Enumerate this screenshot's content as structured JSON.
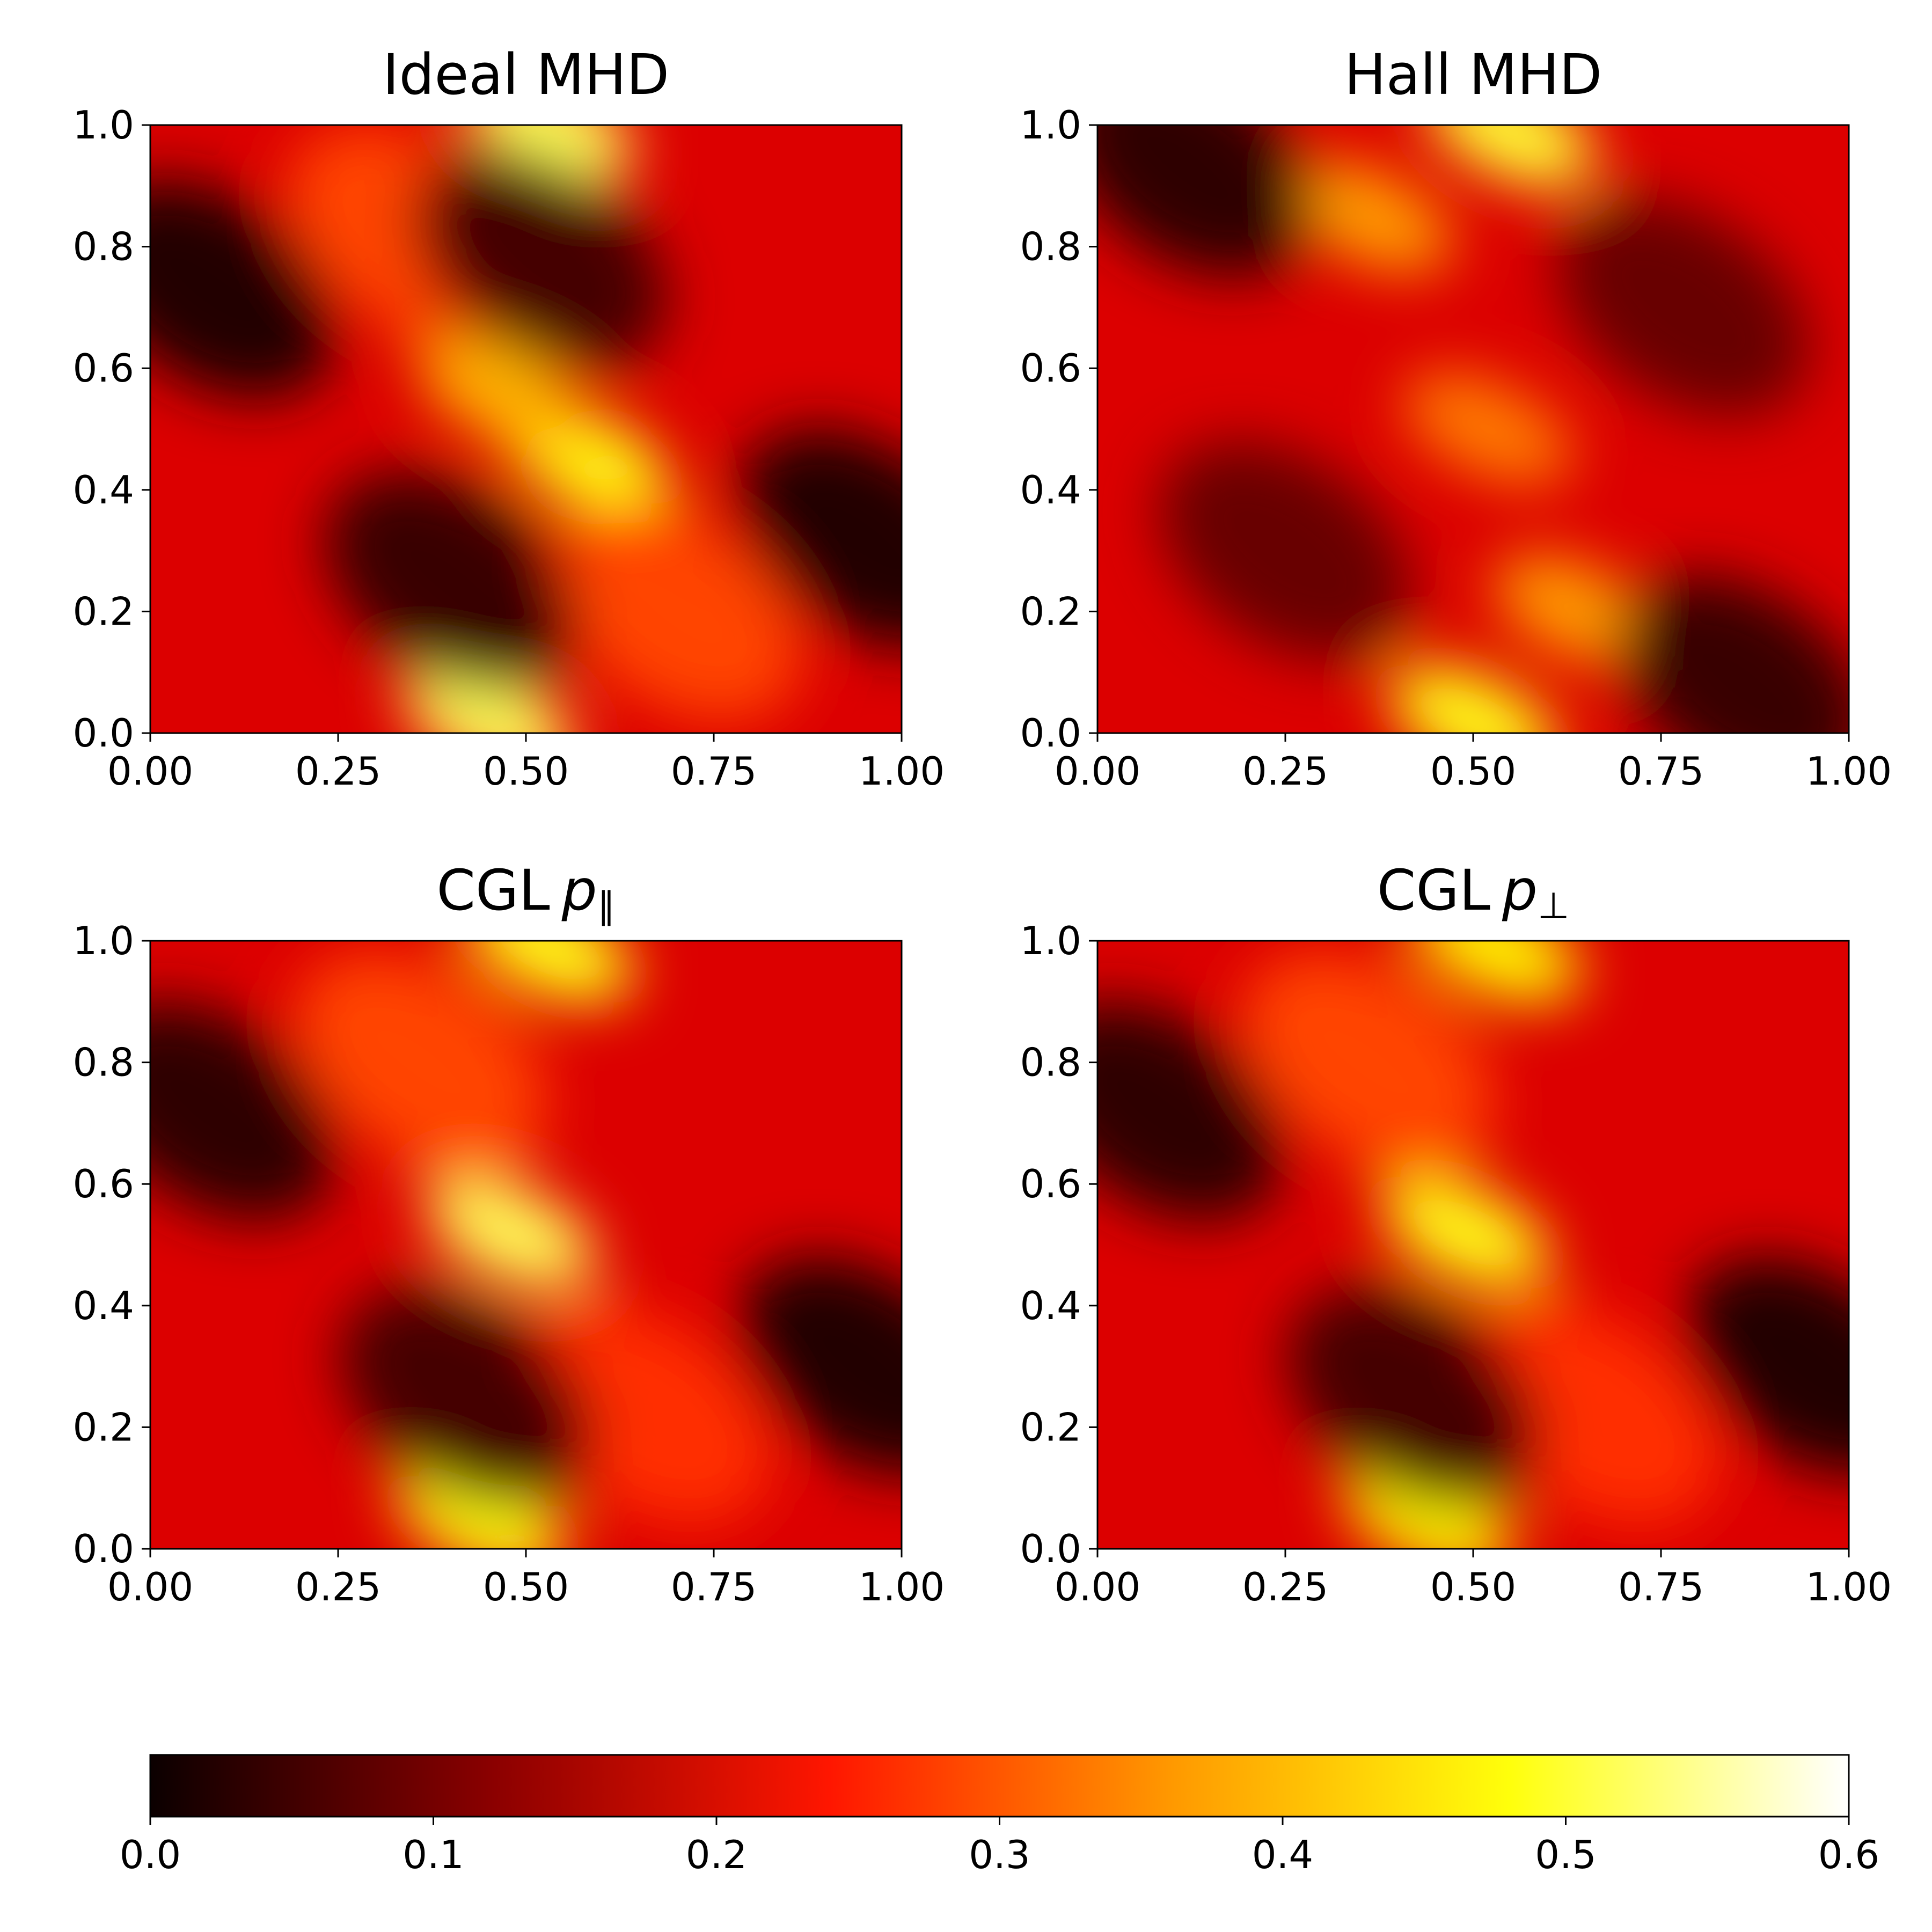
{
  "chart_data": {
    "type": "heatmap",
    "colormap": "hot",
    "colorbar": {
      "range": [
        0.0,
        0.6
      ],
      "ticks": [
        "0.0",
        "0.1",
        "0.2",
        "0.3",
        "0.4",
        "0.5",
        "0.6"
      ],
      "tick_values": [
        0.0,
        0.1,
        0.2,
        0.3,
        0.4,
        0.5,
        0.6
      ],
      "colors": [
        "#0b0000",
        "#8a0000",
        "#ff1600",
        "#ff9800",
        "#ffff0b",
        "#ffffff"
      ],
      "placement": "bottom"
    },
    "panels": [
      {
        "title_main": "Ideal MHD",
        "title_var": "",
        "title_sub": "",
        "xlabel": "",
        "ylabel": "",
        "xlim": [
          0,
          1
        ],
        "ylim": [
          0,
          1
        ],
        "xticks": [
          "0.00",
          "0.25",
          "0.50",
          "0.75",
          "1.00"
        ],
        "yticks": [
          "0.0",
          "0.2",
          "0.4",
          "0.6",
          "0.8",
          "1.0"
        ],
        "features": [
          {
            "x": 0.53,
            "y": 1.0,
            "v": 0.5
          },
          {
            "x": 0.45,
            "y": 0.02,
            "v": 0.5
          },
          {
            "x": 0.58,
            "y": 0.45,
            "v": 0.46
          },
          {
            "x": 0.47,
            "y": 0.56,
            "v": 0.38
          },
          {
            "x": 0.35,
            "y": 0.82,
            "v": 0.28
          },
          {
            "x": 0.7,
            "y": 0.2,
            "v": 0.28
          },
          {
            "x": 0.08,
            "y": 0.73,
            "v": 0.02
          },
          {
            "x": 0.95,
            "y": 0.32,
            "v": 0.02
          },
          {
            "x": 0.4,
            "y": 0.25,
            "v": 0.04
          },
          {
            "x": 0.52,
            "y": 0.78,
            "v": 0.05
          }
        ]
      },
      {
        "title_main": "Hall MHD",
        "title_var": "",
        "title_sub": "",
        "xlabel": "",
        "ylabel": "",
        "xlim": [
          0,
          1
        ],
        "ylim": [
          0,
          1
        ],
        "xticks": [
          "0.00",
          "0.25",
          "0.50",
          "0.75",
          "1.00"
        ],
        "yticks": [
          "0.0",
          "0.2",
          "0.4",
          "0.6",
          "0.8",
          "1.0"
        ],
        "features": [
          {
            "x": 0.55,
            "y": 0.99,
            "v": 0.48
          },
          {
            "x": 0.5,
            "y": 0.02,
            "v": 0.46
          },
          {
            "x": 0.36,
            "y": 0.85,
            "v": 0.36
          },
          {
            "x": 0.64,
            "y": 0.2,
            "v": 0.36
          },
          {
            "x": 0.52,
            "y": 0.5,
            "v": 0.33
          },
          {
            "x": 0.12,
            "y": 0.93,
            "v": 0.03
          },
          {
            "x": 0.86,
            "y": 0.08,
            "v": 0.04
          },
          {
            "x": 0.25,
            "y": 0.3,
            "v": 0.08
          },
          {
            "x": 0.78,
            "y": 0.7,
            "v": 0.08
          }
        ]
      },
      {
        "title_main": "CGL",
        "title_var": "p",
        "title_sub": "∥",
        "xlabel": "",
        "ylabel": "",
        "xlim": [
          0,
          1
        ],
        "ylim": [
          0,
          1
        ],
        "xticks": [
          "0.00",
          "0.25",
          "0.50",
          "0.75",
          "1.00"
        ],
        "yticks": [
          "0.0",
          "0.2",
          "0.4",
          "0.6",
          "0.8",
          "1.0"
        ],
        "features": [
          {
            "x": 0.53,
            "y": 0.99,
            "v": 0.46
          },
          {
            "x": 0.44,
            "y": 0.05,
            "v": 0.46
          },
          {
            "x": 0.48,
            "y": 0.52,
            "v": 0.5
          },
          {
            "x": 0.36,
            "y": 0.8,
            "v": 0.28
          },
          {
            "x": 0.66,
            "y": 0.22,
            "v": 0.26
          },
          {
            "x": 0.08,
            "y": 0.72,
            "v": 0.03
          },
          {
            "x": 0.95,
            "y": 0.3,
            "v": 0.02
          },
          {
            "x": 0.42,
            "y": 0.25,
            "v": 0.05
          }
        ]
      },
      {
        "title_main": "CGL",
        "title_var": "p",
        "title_sub": "⊥",
        "xlabel": "",
        "ylabel": "",
        "xlim": [
          0,
          1
        ],
        "ylim": [
          0,
          1
        ],
        "xticks": [
          "0.00",
          "0.25",
          "0.50",
          "0.75",
          "1.00"
        ],
        "yticks": [
          "0.0",
          "0.2",
          "0.4",
          "0.6",
          "0.8",
          "1.0"
        ],
        "features": [
          {
            "x": 0.53,
            "y": 0.99,
            "v": 0.44
          },
          {
            "x": 0.44,
            "y": 0.05,
            "v": 0.44
          },
          {
            "x": 0.49,
            "y": 0.52,
            "v": 0.46
          },
          {
            "x": 0.36,
            "y": 0.8,
            "v": 0.28
          },
          {
            "x": 0.66,
            "y": 0.22,
            "v": 0.26
          },
          {
            "x": 0.08,
            "y": 0.72,
            "v": 0.03
          },
          {
            "x": 0.95,
            "y": 0.3,
            "v": 0.02
          },
          {
            "x": 0.42,
            "y": 0.25,
            "v": 0.05
          }
        ]
      }
    ]
  }
}
